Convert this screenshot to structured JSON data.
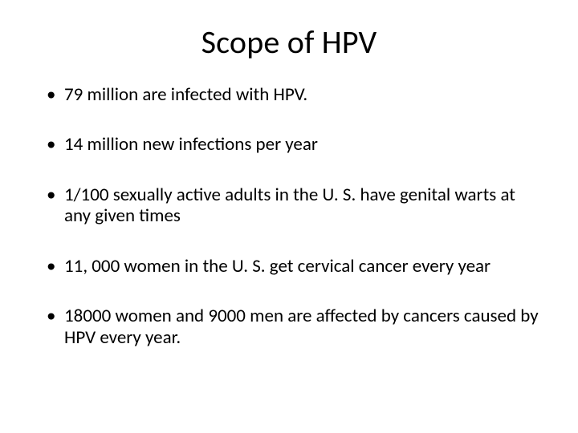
{
  "slide": {
    "title": "Scope of HPV",
    "bullets": [
      "79 million are infected with HPV.",
      "14 million new infections per year",
      "1/100 sexually active adults in the U. S. have genital warts at any given times",
      "11, 000 women in the U. S. get cervical cancer every year",
      "18000 women and 9000 men are affected by cancers caused by HPV every year."
    ]
  },
  "style": {
    "background_color": "#ffffff",
    "text_color": "#000000",
    "title_fontsize": 40,
    "body_fontsize": 23,
    "font_family": "Calibri"
  }
}
